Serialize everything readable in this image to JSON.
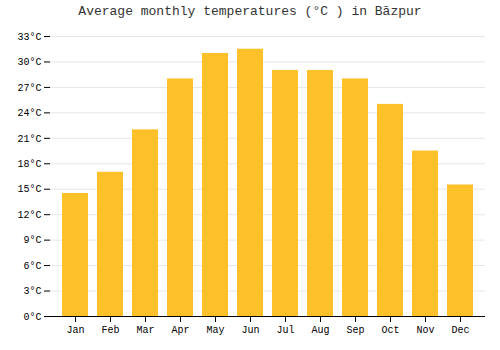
{
  "chart_data": {
    "type": "bar",
    "title": "Average monthly temperatures (°C ) in Bāzpur",
    "categories": [
      "Jan",
      "Feb",
      "Mar",
      "Apr",
      "May",
      "Jun",
      "Jul",
      "Aug",
      "Sep",
      "Oct",
      "Nov",
      "Dec"
    ],
    "values": [
      14.5,
      17.0,
      22.0,
      28.0,
      31.0,
      31.5,
      29.0,
      29.0,
      28.0,
      25.0,
      19.5,
      15.5
    ],
    "color": "#FFC12A",
    "ylim": [
      0,
      33
    ],
    "yticks": [
      {
        "value": 0,
        "label": "0°C"
      },
      {
        "value": 3,
        "label": "3°C"
      },
      {
        "value": 6,
        "label": "6°C"
      },
      {
        "value": 9,
        "label": "9°C"
      },
      {
        "value": 12,
        "label": "12°C"
      },
      {
        "value": 15,
        "label": "15°C"
      },
      {
        "value": 18,
        "label": "18°C"
      },
      {
        "value": 21,
        "label": "21°C"
      },
      {
        "value": 24,
        "label": "24°C"
      },
      {
        "value": 27,
        "label": "27°C"
      },
      {
        "value": 30,
        "label": "30°C"
      },
      {
        "value": 33,
        "label": "33°C"
      }
    ],
    "grid": true
  }
}
